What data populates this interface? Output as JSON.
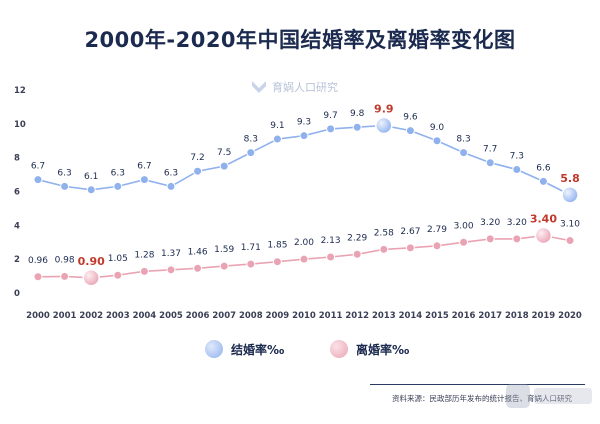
{
  "chart_data": {
    "type": "line",
    "title": "2000年-2020年中国结婚率及离婚率变化图",
    "categories": [
      "2000",
      "2001",
      "2002",
      "2003",
      "2004",
      "2005",
      "2006",
      "2007",
      "2008",
      "2009",
      "2010",
      "2011",
      "2012",
      "2013",
      "2014",
      "2015",
      "2016",
      "2017",
      "2018",
      "2019",
      "2020"
    ],
    "ylim": [
      0,
      12
    ],
    "yticks": [
      0,
      2,
      4,
      6,
      8,
      10,
      12
    ],
    "grid": false,
    "legend_position": "bottom-center",
    "series": [
      {
        "name": "结婚率‰",
        "color": "#8fb1ee",
        "values": [
          6.7,
          6.3,
          6.1,
          6.3,
          6.7,
          6.3,
          7.2,
          7.5,
          8.3,
          9.1,
          9.3,
          9.7,
          9.8,
          9.9,
          9.6,
          9.0,
          8.3,
          7.7,
          7.3,
          6.6,
          5.8
        ],
        "labels": [
          "6.7",
          "6.3",
          "6.1",
          "6.3",
          "6.7",
          "6.3",
          "7.2",
          "7.5",
          "8.3",
          "9.1",
          "9.3",
          "9.7",
          "9.8",
          "9.9",
          "9.6",
          "9.0",
          "8.3",
          "7.7",
          "7.3",
          "6.6",
          "5.8"
        ],
        "highlight": [
          13,
          20
        ]
      },
      {
        "name": "离婚率‰",
        "color": "#eaa3b3",
        "values": [
          0.96,
          0.98,
          0.9,
          1.05,
          1.28,
          1.37,
          1.46,
          1.59,
          1.71,
          1.85,
          2.0,
          2.13,
          2.29,
          2.58,
          2.67,
          2.79,
          3.0,
          3.2,
          3.2,
          3.4,
          3.1
        ],
        "labels": [
          "0.96",
          "0.98",
          "0.90",
          "1.05",
          "1.28",
          "1.37",
          "1.46",
          "1.59",
          "1.71",
          "1.85",
          "2.00",
          "2.13",
          "2.29",
          "2.58",
          "2.67",
          "2.79",
          "3.00",
          "3.20",
          "3.20",
          "3.40",
          "3.10"
        ],
        "highlight": [
          2,
          19
        ]
      }
    ]
  },
  "watermark": {
    "text": "育娲人口研究"
  },
  "source": "资料来源：民政部历年发布的统计报告、育娲人口研究",
  "colors": {
    "highlight_label": "#c0392b",
    "title": "#1b2a4e"
  },
  "icons": [
    "watermark-logo-icon",
    "corner-logo-icon"
  ]
}
